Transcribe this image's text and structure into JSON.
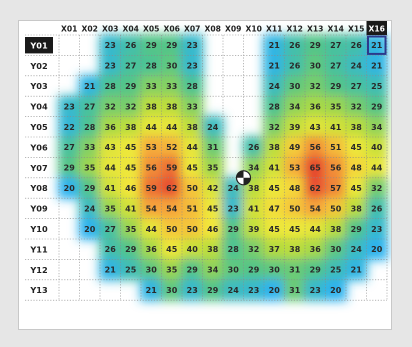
{
  "chart_data": {
    "type": "heatmap",
    "x_labels": [
      "X01",
      "X02",
      "X03",
      "X04",
      "X05",
      "X06",
      "X07",
      "X08",
      "X09",
      "X10",
      "X11",
      "X12",
      "X13",
      "X14",
      "X15",
      "X16"
    ],
    "y_labels": [
      "Y01",
      "Y02",
      "Y03",
      "Y04",
      "Y05",
      "Y06",
      "Y07",
      "Y08",
      "Y09",
      "Y10",
      "Y11",
      "Y12",
      "Y13"
    ],
    "values": [
      [
        null,
        null,
        23,
        26,
        29,
        29,
        23,
        null,
        null,
        null,
        21,
        26,
        29,
        27,
        26,
        21
      ],
      [
        null,
        null,
        23,
        27,
        28,
        30,
        23,
        null,
        null,
        null,
        21,
        26,
        30,
        27,
        24,
        21
      ],
      [
        null,
        21,
        28,
        29,
        33,
        33,
        28,
        null,
        null,
        null,
        24,
        30,
        32,
        29,
        27,
        25
      ],
      [
        23,
        27,
        32,
        32,
        38,
        38,
        33,
        null,
        null,
        null,
        28,
        34,
        36,
        35,
        32,
        29
      ],
      [
        22,
        28,
        36,
        38,
        44,
        44,
        38,
        24,
        null,
        null,
        32,
        39,
        43,
        41,
        38,
        34
      ],
      [
        27,
        33,
        43,
        45,
        53,
        52,
        44,
        31,
        null,
        26,
        38,
        49,
        56,
        51,
        45,
        40
      ],
      [
        29,
        35,
        44,
        45,
        56,
        59,
        45,
        35,
        null,
        34,
        41,
        53,
        65,
        56,
        48,
        44
      ],
      [
        20,
        29,
        41,
        46,
        59,
        62,
        50,
        42,
        24,
        38,
        45,
        48,
        62,
        57,
        45,
        32
      ],
      [
        null,
        24,
        35,
        41,
        54,
        54,
        51,
        45,
        23,
        41,
        47,
        50,
        54,
        50,
        38,
        26
      ],
      [
        null,
        20,
        27,
        35,
        44,
        50,
        50,
        46,
        29,
        39,
        45,
        45,
        44,
        38,
        29,
        23
      ],
      [
        null,
        null,
        26,
        29,
        36,
        45,
        40,
        38,
        28,
        32,
        37,
        38,
        36,
        30,
        24,
        20
      ],
      [
        null,
        null,
        21,
        25,
        30,
        35,
        29,
        34,
        30,
        29,
        30,
        31,
        29,
        25,
        21,
        null
      ],
      [
        null,
        null,
        null,
        null,
        21,
        30,
        23,
        29,
        24,
        23,
        20,
        31,
        23,
        20,
        null,
        null
      ]
    ],
    "highlighted_row": "Y01",
    "highlighted_column": "X16",
    "color_scale": [
      "#2db3ee",
      "#4fc48c",
      "#b6dc3c",
      "#f3e83a",
      "#f5a03a",
      "#e5462f"
    ],
    "frame_background": "#e6e6e6"
  }
}
